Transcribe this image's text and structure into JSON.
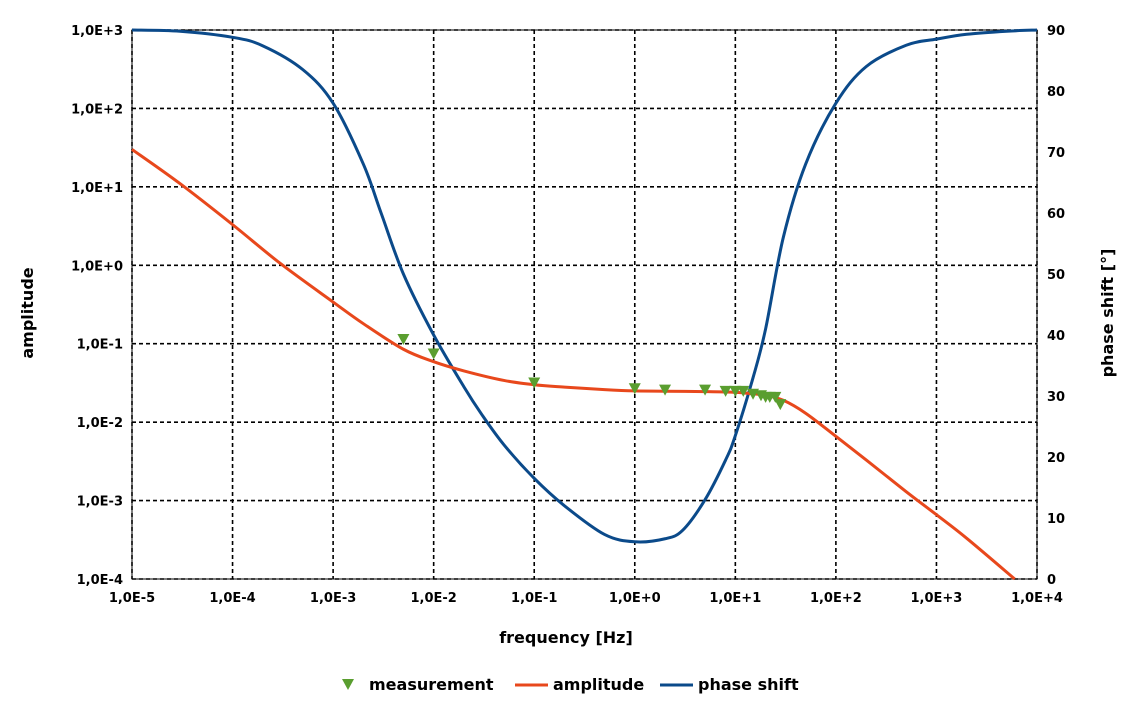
{
  "chart_data": {
    "type": "line",
    "xlabel": "frequency [Hz]",
    "ylabel": "amplitude",
    "y2label": "phase shift [°]",
    "x_scale": "log",
    "y_scale": "log",
    "xlim": [
      1e-05,
      10000
    ],
    "ylim": [
      0.0001,
      1000
    ],
    "y2lim": [
      0,
      90
    ],
    "grid": true,
    "legend_position": "bottom",
    "x_ticks": [
      1e-05,
      0.0001,
      0.001,
      0.01,
      0.1,
      1,
      10,
      100,
      1000,
      10000
    ],
    "x_tick_labels": [
      "1,0E-5",
      "1,0E-4",
      "1,0E-3",
      "1,0E-2",
      "1,0E-1",
      "1,0E+0",
      "1,0E+1",
      "1,0E+2",
      "1,0E+3",
      "1,0E+4"
    ],
    "y_ticks": [
      0.0001,
      0.001,
      0.01,
      0.1,
      1,
      10,
      100,
      1000
    ],
    "y_tick_labels": [
      "1,0E-4",
      "1,0E-3",
      "1,0E-2",
      "1,0E-1",
      "1,0E+0",
      "1,0E+1",
      "1,0E+2",
      "1,0E+3"
    ],
    "y2_ticks": [
      0,
      10,
      20,
      30,
      40,
      50,
      60,
      70,
      80,
      90
    ],
    "y2_tick_labels": [
      "0",
      "10",
      "20",
      "30",
      "40",
      "50",
      "60",
      "70",
      "80",
      "90"
    ],
    "series": [
      {
        "name": "measurement",
        "kind": "scatter",
        "marker": "triangle-down",
        "color": "#5a9e2f",
        "axis": "left",
        "x": [
          0.005,
          0.01,
          0.1,
          1,
          2,
          5,
          8,
          10,
          12,
          15,
          18,
          20,
          22,
          25,
          28
        ],
        "y": [
          0.115,
          0.075,
          0.032,
          0.027,
          0.026,
          0.026,
          0.025,
          0.025,
          0.025,
          0.023,
          0.022,
          0.021,
          0.021,
          0.021,
          0.017
        ]
      },
      {
        "name": "amplitude",
        "kind": "line",
        "color": "#e8481c",
        "axis": "left",
        "x": [
          1e-05,
          3e-05,
          0.0001,
          0.0003,
          0.001,
          0.002,
          0.005,
          0.01,
          0.02,
          0.05,
          0.1,
          0.2,
          0.5,
          1,
          2,
          5,
          10,
          15,
          20,
          30,
          50,
          100,
          200,
          500,
          1000,
          2000,
          6000
        ],
        "y": [
          30,
          11,
          3.3,
          1.05,
          0.34,
          0.18,
          0.085,
          0.059,
          0.045,
          0.034,
          0.03,
          0.028,
          0.026,
          0.025,
          0.0248,
          0.0245,
          0.024,
          0.023,
          0.022,
          0.019,
          0.013,
          0.0066,
          0.0033,
          0.0013,
          0.00066,
          0.00033,
          0.0001
        ]
      },
      {
        "name": "phase shift",
        "kind": "line",
        "color": "#0b4a8a",
        "axis": "right",
        "x": [
          1e-05,
          3e-05,
          0.0001,
          0.0002,
          0.0005,
          0.001,
          0.002,
          0.003,
          0.005,
          0.01,
          0.02,
          0.03,
          0.05,
          0.1,
          0.2,
          0.5,
          1,
          2,
          3,
          5,
          8,
          10,
          15,
          20,
          30,
          50,
          100,
          200,
          500,
          1000,
          2000,
          5000,
          10000
        ],
        "y": [
          90,
          89.8,
          88.8,
          87.4,
          83.5,
          78,
          68,
          60,
          50,
          40,
          31.5,
          27,
          22,
          16.5,
          12,
          7.3,
          6.1,
          6.6,
          8,
          13,
          19.5,
          23.5,
          33,
          41,
          56,
          68,
          78,
          84,
          87.5,
          88.5,
          89.3,
          89.8,
          90
        ]
      }
    ]
  }
}
